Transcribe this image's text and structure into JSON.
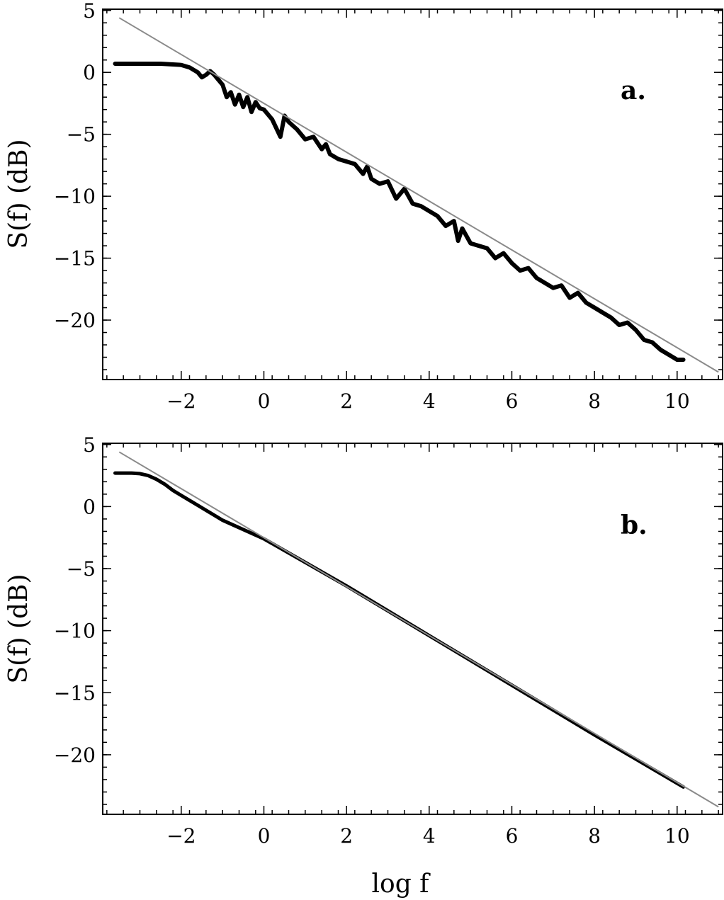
{
  "chart_data": [
    {
      "type": "line",
      "panel_label": "a.",
      "ylabel": "S(f)  (dB)",
      "xlabel": "",
      "xlim": [
        -3.9,
        11.1
      ],
      "ylim": [
        -24.8,
        5.1
      ],
      "x_ticks": [
        -2,
        0,
        2,
        4,
        6,
        8,
        10
      ],
      "x_tick_labels": [
        "−2",
        "0",
        "2",
        "4",
        "6",
        "8",
        "10"
      ],
      "y_ticks": [
        5,
        0,
        -5,
        -10,
        -15,
        -20
      ],
      "y_tick_labels": [
        "5",
        "0",
        "−5",
        "−10",
        "−15",
        "−20"
      ],
      "series": [
        {
          "style": "thick-noisy",
          "color": "#000000",
          "x": [
            -3.6,
            -3.0,
            -2.5,
            -2.0,
            -1.8,
            -1.6,
            -1.5,
            -1.4,
            -1.3,
            -1.2,
            -1.1,
            -1.0,
            -0.9,
            -0.8,
            -0.7,
            -0.6,
            -0.5,
            -0.4,
            -0.3,
            -0.2,
            -0.1,
            0.0,
            0.2,
            0.4,
            0.5,
            0.6,
            0.8,
            1.0,
            1.2,
            1.4,
            1.5,
            1.6,
            1.8,
            2.0,
            2.2,
            2.4,
            2.5,
            2.6,
            2.8,
            3.0,
            3.2,
            3.4,
            3.6,
            3.8,
            4.0,
            4.2,
            4.4,
            4.6,
            4.7,
            4.8,
            5.0,
            5.2,
            5.4,
            5.6,
            5.8,
            6.0,
            6.2,
            6.4,
            6.6,
            6.8,
            7.0,
            7.2,
            7.4,
            7.6,
            7.8,
            8.0,
            8.2,
            8.4,
            8.6,
            8.8,
            9.0,
            9.2,
            9.4,
            9.6,
            9.8,
            10.0,
            10.15
          ],
          "y": [
            0.7,
            0.7,
            0.7,
            0.6,
            0.4,
            0.0,
            -0.4,
            -0.2,
            0.1,
            -0.2,
            -0.6,
            -1.0,
            -2.0,
            -1.6,
            -2.6,
            -1.8,
            -2.8,
            -2.0,
            -3.2,
            -2.4,
            -2.9,
            -3.0,
            -3.8,
            -5.2,
            -3.5,
            -4.0,
            -4.6,
            -5.4,
            -5.2,
            -6.2,
            -5.8,
            -6.6,
            -7.0,
            -7.2,
            -7.4,
            -8.2,
            -7.6,
            -8.6,
            -9.0,
            -8.8,
            -10.2,
            -9.4,
            -10.6,
            -10.8,
            -11.2,
            -11.6,
            -12.4,
            -12.0,
            -13.6,
            -12.6,
            -13.8,
            -14.0,
            -14.2,
            -15.0,
            -14.6,
            -15.4,
            -16.0,
            -15.8,
            -16.6,
            -17.0,
            -17.4,
            -17.2,
            -18.2,
            -17.8,
            -18.6,
            -19.0,
            -19.4,
            -19.8,
            -20.4,
            -20.2,
            -20.8,
            -21.6,
            -21.8,
            -22.4,
            -22.8,
            -23.2,
            -23.2
          ]
        },
        {
          "style": "fit-line",
          "color": "#8a8a8a",
          "x": [
            -3.5,
            11.0
          ],
          "y": [
            4.4,
            -24.2
          ]
        }
      ]
    },
    {
      "type": "line",
      "panel_label": "b.",
      "ylabel": "S(f)  (dB)",
      "xlabel": "log f",
      "xlim": [
        -3.9,
        11.1
      ],
      "ylim": [
        -24.8,
        5.1
      ],
      "x_ticks": [
        -2,
        0,
        2,
        4,
        6,
        8,
        10
      ],
      "x_tick_labels": [
        "−2",
        "0",
        "2",
        "4",
        "6",
        "8",
        "10"
      ],
      "y_ticks": [
        5,
        0,
        -5,
        -10,
        -15,
        -20
      ],
      "y_tick_labels": [
        "5",
        "0",
        "−5",
        "−10",
        "−15",
        "−20"
      ],
      "series": [
        {
          "style": "thick-smooth",
          "color": "#000000",
          "x": [
            -3.6,
            -3.2,
            -3.0,
            -2.8,
            -2.6,
            -2.4,
            -2.2,
            -2.0,
            -1.8,
            -1.6,
            -1.4,
            -1.2,
            -1.0,
            0.0,
            2.0,
            4.0,
            6.0,
            8.0,
            10.15
          ],
          "y": [
            2.7,
            2.7,
            2.65,
            2.5,
            2.2,
            1.8,
            1.3,
            0.9,
            0.5,
            0.1,
            -0.3,
            -0.7,
            -1.1,
            -2.6,
            -6.4,
            -10.4,
            -14.4,
            -18.4,
            -22.6
          ]
        },
        {
          "style": "fit-line",
          "color": "#8a8a8a",
          "x": [
            -3.5,
            11.0
          ],
          "y": [
            4.4,
            -24.2
          ]
        }
      ]
    }
  ]
}
